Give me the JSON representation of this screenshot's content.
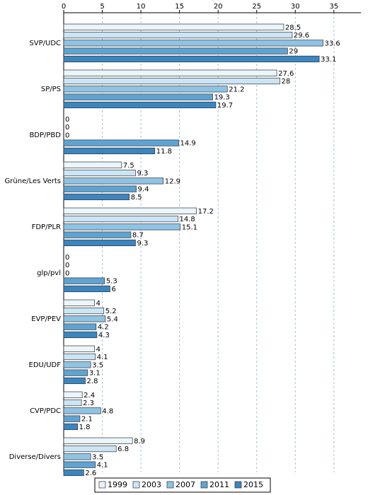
{
  "chart_data": {
    "type": "bar",
    "orientation": "horizontal",
    "categories": [
      "SVP/UDC",
      "SP/PS",
      "BDP/PBD",
      "Grüne/Les Verts",
      "FDP/PLR",
      "glp/pvl",
      "EVP/PEV",
      "EDU/UDF",
      "CVP/PDC",
      "Diverse/Divers"
    ],
    "series": [
      {
        "name": "1999",
        "color": "#eaf5fc",
        "values": [
          28.5,
          27.6,
          0,
          7.5,
          17.2,
          0,
          4,
          4,
          2.4,
          8.9
        ]
      },
      {
        "name": "2003",
        "color": "#cbe5f6",
        "values": [
          29.6,
          28,
          0,
          9.3,
          14.8,
          0,
          5.2,
          4.1,
          2.3,
          6.8
        ]
      },
      {
        "name": "2007",
        "color": "#8ec3e4",
        "values": [
          33.6,
          21.2,
          0,
          12.9,
          15.1,
          0,
          5.4,
          3.5,
          4.8,
          3.5
        ]
      },
      {
        "name": "2011",
        "color": "#5ea3d2",
        "values": [
          29,
          19.3,
          14.9,
          9.4,
          8.7,
          5.3,
          4.2,
          3.1,
          2.1,
          4.1
        ]
      },
      {
        "name": "2015",
        "color": "#3b86c0",
        "values": [
          33.1,
          19.7,
          11.8,
          8.5,
          9.3,
          6,
          4.3,
          2.8,
          1.8,
          2.6
        ]
      }
    ],
    "xlim": [
      0,
      38.5
    ],
    "xticks": [
      0,
      5,
      10,
      15,
      20,
      25,
      30,
      35
    ],
    "grid": true,
    "legend": "bottom"
  }
}
